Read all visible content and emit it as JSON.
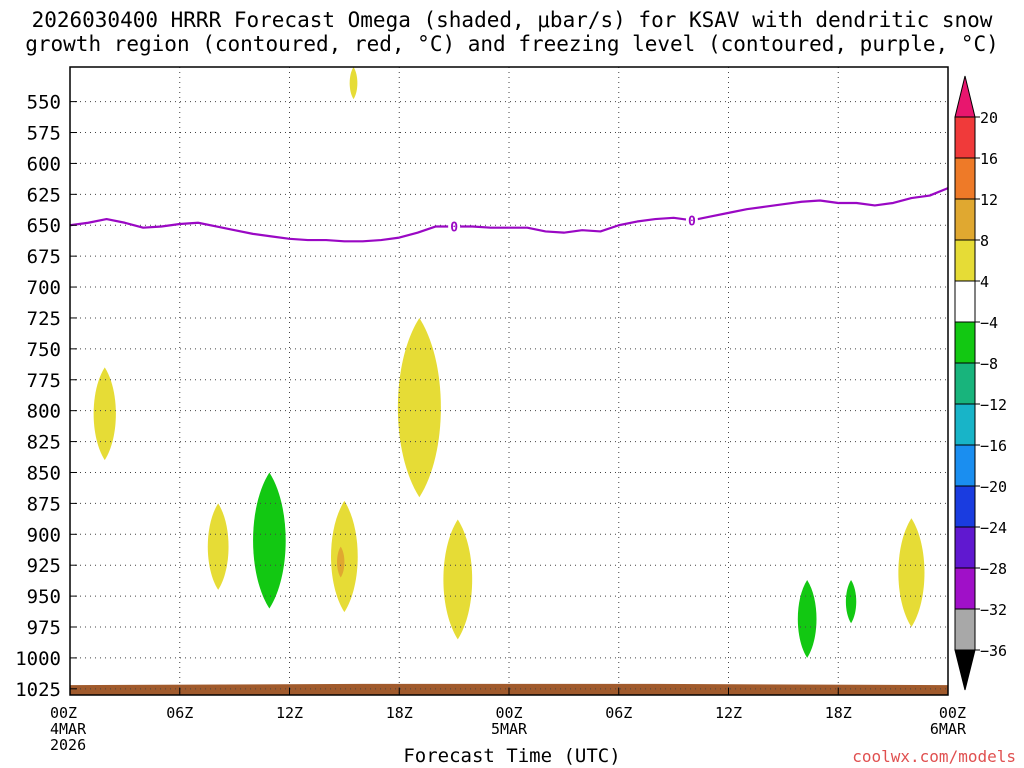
{
  "chart_data": {
    "type": "heatmap",
    "title_line1": "2026030400 HRRR Forecast Omega (shaded, μbar/s) for KSAV with dendritic snow",
    "title_line2": "growth region (contoured, red, °C) and freezing level (contoured, purple, °C)",
    "xlabel": "Forecast Time (UTC)",
    "credit": "coolwx.com/models",
    "y_axis": {
      "label": "",
      "ticks": [
        550,
        575,
        600,
        625,
        650,
        675,
        700,
        725,
        750,
        775,
        800,
        825,
        850,
        875,
        900,
        925,
        950,
        975,
        1000,
        1025
      ],
      "range": [
        522,
        1030
      ],
      "unit": "mb"
    },
    "x_axis": {
      "range_hours": [
        0,
        48
      ],
      "ticks": [
        {
          "hour": 0,
          "lines": [
            "00Z",
            "4MAR",
            "2026"
          ]
        },
        {
          "hour": 6,
          "lines": [
            "06Z"
          ]
        },
        {
          "hour": 12,
          "lines": [
            "12Z"
          ]
        },
        {
          "hour": 18,
          "lines": [
            "18Z"
          ]
        },
        {
          "hour": 24,
          "lines": [
            "00Z",
            "5MAR"
          ]
        },
        {
          "hour": 30,
          "lines": [
            "06Z"
          ]
        },
        {
          "hour": 36,
          "lines": [
            "12Z"
          ]
        },
        {
          "hour": 42,
          "lines": [
            "18Z"
          ]
        },
        {
          "hour": 48,
          "lines": [
            "00Z",
            "6MAR"
          ]
        }
      ]
    },
    "grid": true,
    "colorbar": {
      "position": "right",
      "labels": [
        "20",
        "16",
        "12",
        "8",
        "4",
        "−4",
        "−8",
        "−12",
        "−16",
        "−20",
        "−24",
        "−28",
        "−32",
        "−36"
      ],
      "colors": [
        "#e8166e",
        "#f03a3a",
        "#ee7a28",
        "#e0a830",
        "#e6dc36",
        "#ffffff",
        "#12c812",
        "#18b47c",
        "#18b4c8",
        "#1a8ef0",
        "#1a3ce0",
        "#6018d0",
        "#a010c8",
        "#a8a8a8",
        "#000000"
      ]
    },
    "freezing_level": {
      "color": "#9a08c4",
      "label": "0",
      "hours": [
        0,
        1,
        2,
        3,
        4,
        5,
        6,
        7,
        8,
        9,
        10,
        11,
        12,
        13,
        14,
        15,
        16,
        17,
        18,
        19,
        20,
        21,
        22,
        23,
        24,
        25,
        26,
        27,
        28,
        29,
        30,
        31,
        32,
        33,
        34,
        35,
        36,
        37,
        38,
        39,
        40,
        41,
        42,
        43,
        44,
        45,
        46,
        47,
        48
      ],
      "levels": [
        650,
        648,
        645,
        648,
        652,
        651,
        649,
        648,
        651,
        654,
        657,
        659,
        661,
        662,
        662,
        663,
        663,
        662,
        660,
        656,
        651,
        651,
        651,
        652,
        652,
        652,
        655,
        656,
        654,
        655,
        650,
        647,
        645,
        644,
        646,
        643,
        640,
        637,
        635,
        633,
        631,
        630,
        632,
        632,
        634,
        632,
        628,
        626,
        620
      ],
      "label_hours": [
        21,
        34
      ]
    },
    "terrain": {
      "color": "#a05a2c",
      "top_mb": [
        1022,
        1021,
        1021,
        1022
      ]
    },
    "shaded_regions": [
      {
        "kind": "upward 4-8",
        "color": "#e6dc36",
        "hour": 15.5,
        "mb_top": 522,
        "mb_bottom": 548
      },
      {
        "kind": "upward 4-8",
        "color": "#e6dc36",
        "hour": 1.9,
        "mb_top": 765,
        "mb_bottom": 840
      },
      {
        "kind": "upward 4-8",
        "color": "#e6dc36",
        "hour": 19.1,
        "mb_top": 725,
        "mb_bottom": 870
      },
      {
        "kind": "upward 4-8",
        "color": "#e6dc36",
        "hour": 8.1,
        "mb_top": 875,
        "mb_bottom": 945
      },
      {
        "kind": "upward 4-8",
        "color": "#e6dc36",
        "hour": 15.0,
        "mb_top": 873,
        "mb_bottom": 963
      },
      {
        "kind": "upward 4-8",
        "color": "#e6dc36",
        "hour": 21.2,
        "mb_top": 888,
        "mb_bottom": 985
      },
      {
        "kind": "upward 4-8",
        "color": "#e6dc36",
        "hour": 46.0,
        "mb_top": 887,
        "mb_bottom": 975
      },
      {
        "kind": "upward 8-12",
        "color": "#e0a830",
        "hour": 14.8,
        "mb_top": 910,
        "mb_bottom": 935
      },
      {
        "kind": "downward -4 to -8",
        "color": "#12c812",
        "hour": 10.9,
        "mb_top": 850,
        "mb_bottom": 960
      },
      {
        "kind": "downward -4 to -8",
        "color": "#12c812",
        "hour": 40.3,
        "mb_top": 937,
        "mb_bottom": 1000
      },
      {
        "kind": "downward -4 to -8",
        "color": "#12c812",
        "hour": 42.7,
        "mb_top": 937,
        "mb_bottom": 972
      }
    ]
  }
}
